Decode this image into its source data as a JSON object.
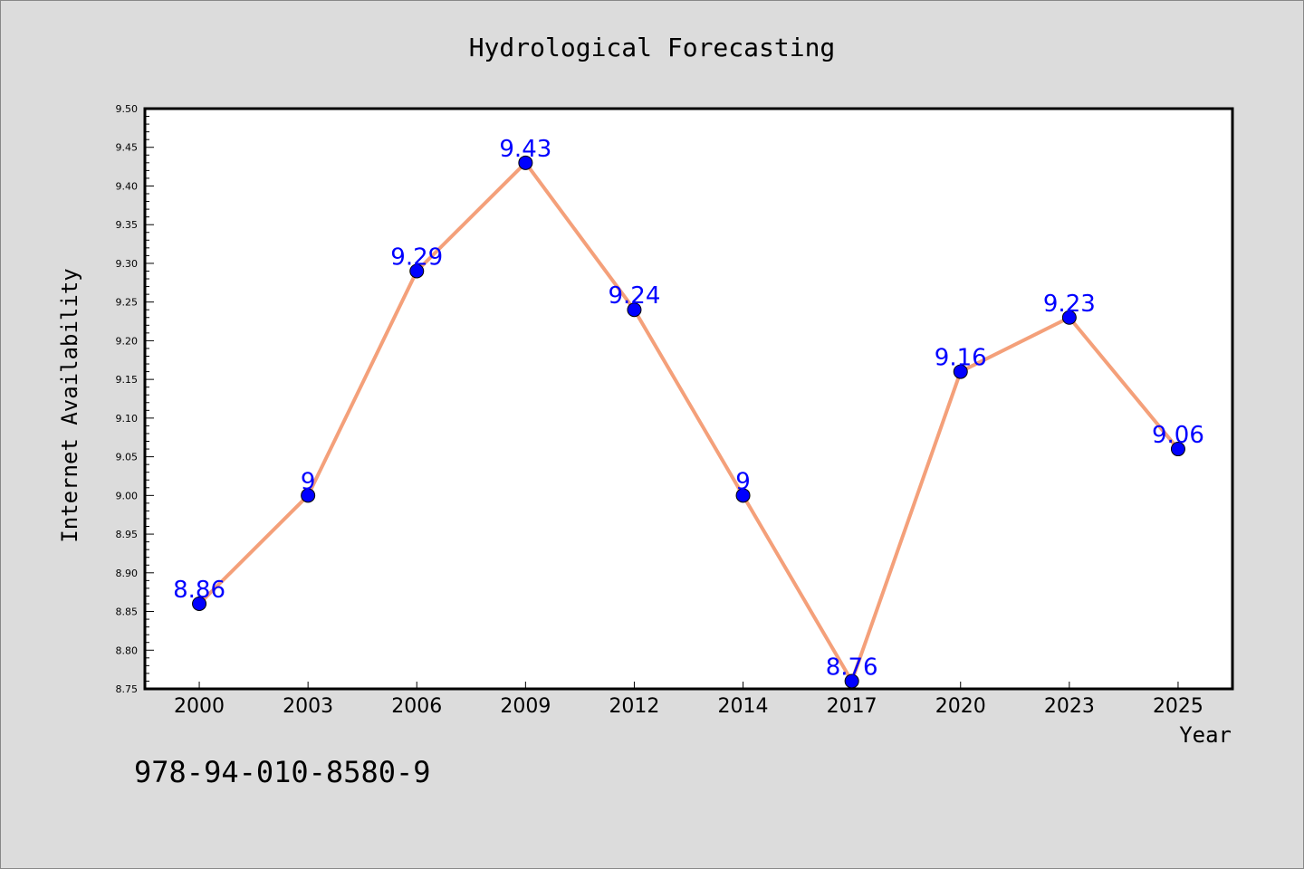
{
  "chart_data": {
    "type": "line",
    "title": "Hydrological Forecasting",
    "xlabel": "Year",
    "ylabel": "Internet Availability",
    "categories": [
      "2000",
      "2003",
      "2006",
      "2009",
      "2012",
      "2014",
      "2017",
      "2020",
      "2023",
      "2025"
    ],
    "values": [
      8.86,
      9,
      9.29,
      9.43,
      9.24,
      9,
      8.76,
      9.16,
      9.23,
      9.06
    ],
    "data_labels": [
      "8.86",
      "9",
      "9.29",
      "9.43",
      "9.24",
      "9",
      "8.76",
      "9.16",
      "9.23",
      "9.06"
    ],
    "ylim": [
      8.75,
      9.5
    ],
    "y_ticks": [
      "8.75",
      "8.80",
      "8.85",
      "8.90",
      "8.95",
      "9.00",
      "9.05",
      "9.10",
      "9.15",
      "9.20",
      "9.25",
      "9.30",
      "9.35",
      "9.40",
      "9.45",
      "9.50"
    ],
    "annotation": "978-94-010-8580-9",
    "grid": false,
    "legend": "none",
    "colors": {
      "background": "#dcdcdc",
      "plot_area": "#ffffff",
      "line": "#f4a07a",
      "marker": "#0000ff",
      "data_label": "#0000ff",
      "text": "#000000"
    }
  }
}
